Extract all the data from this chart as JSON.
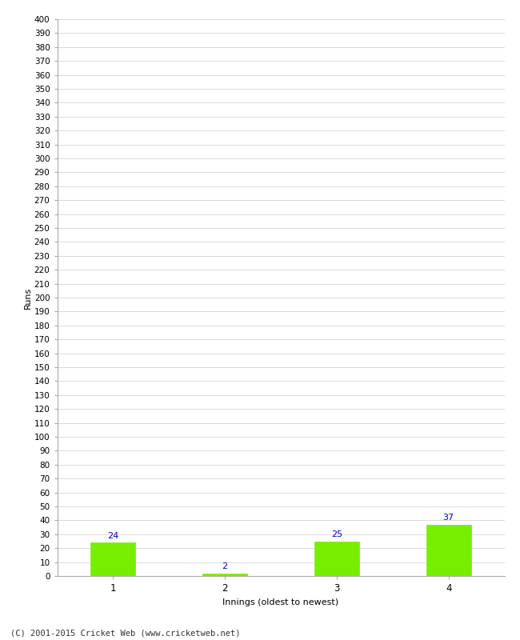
{
  "categories": [
    "1",
    "2",
    "3",
    "4"
  ],
  "values": [
    24,
    2,
    25,
    37
  ],
  "bar_color": "#77ee00",
  "bar_edge_color": "#77ee00",
  "label_color": "#0000cc",
  "ylabel": "Runs",
  "xlabel": "Innings (oldest to newest)",
  "ylim": [
    0,
    400
  ],
  "ytick_step": 10,
  "background_color": "#ffffff",
  "grid_color": "#cccccc",
  "footer": "(C) 2001-2015 Cricket Web (www.cricketweb.net)",
  "tick_fontsize": 7.5,
  "label_fontsize": 8,
  "bar_width": 0.4
}
